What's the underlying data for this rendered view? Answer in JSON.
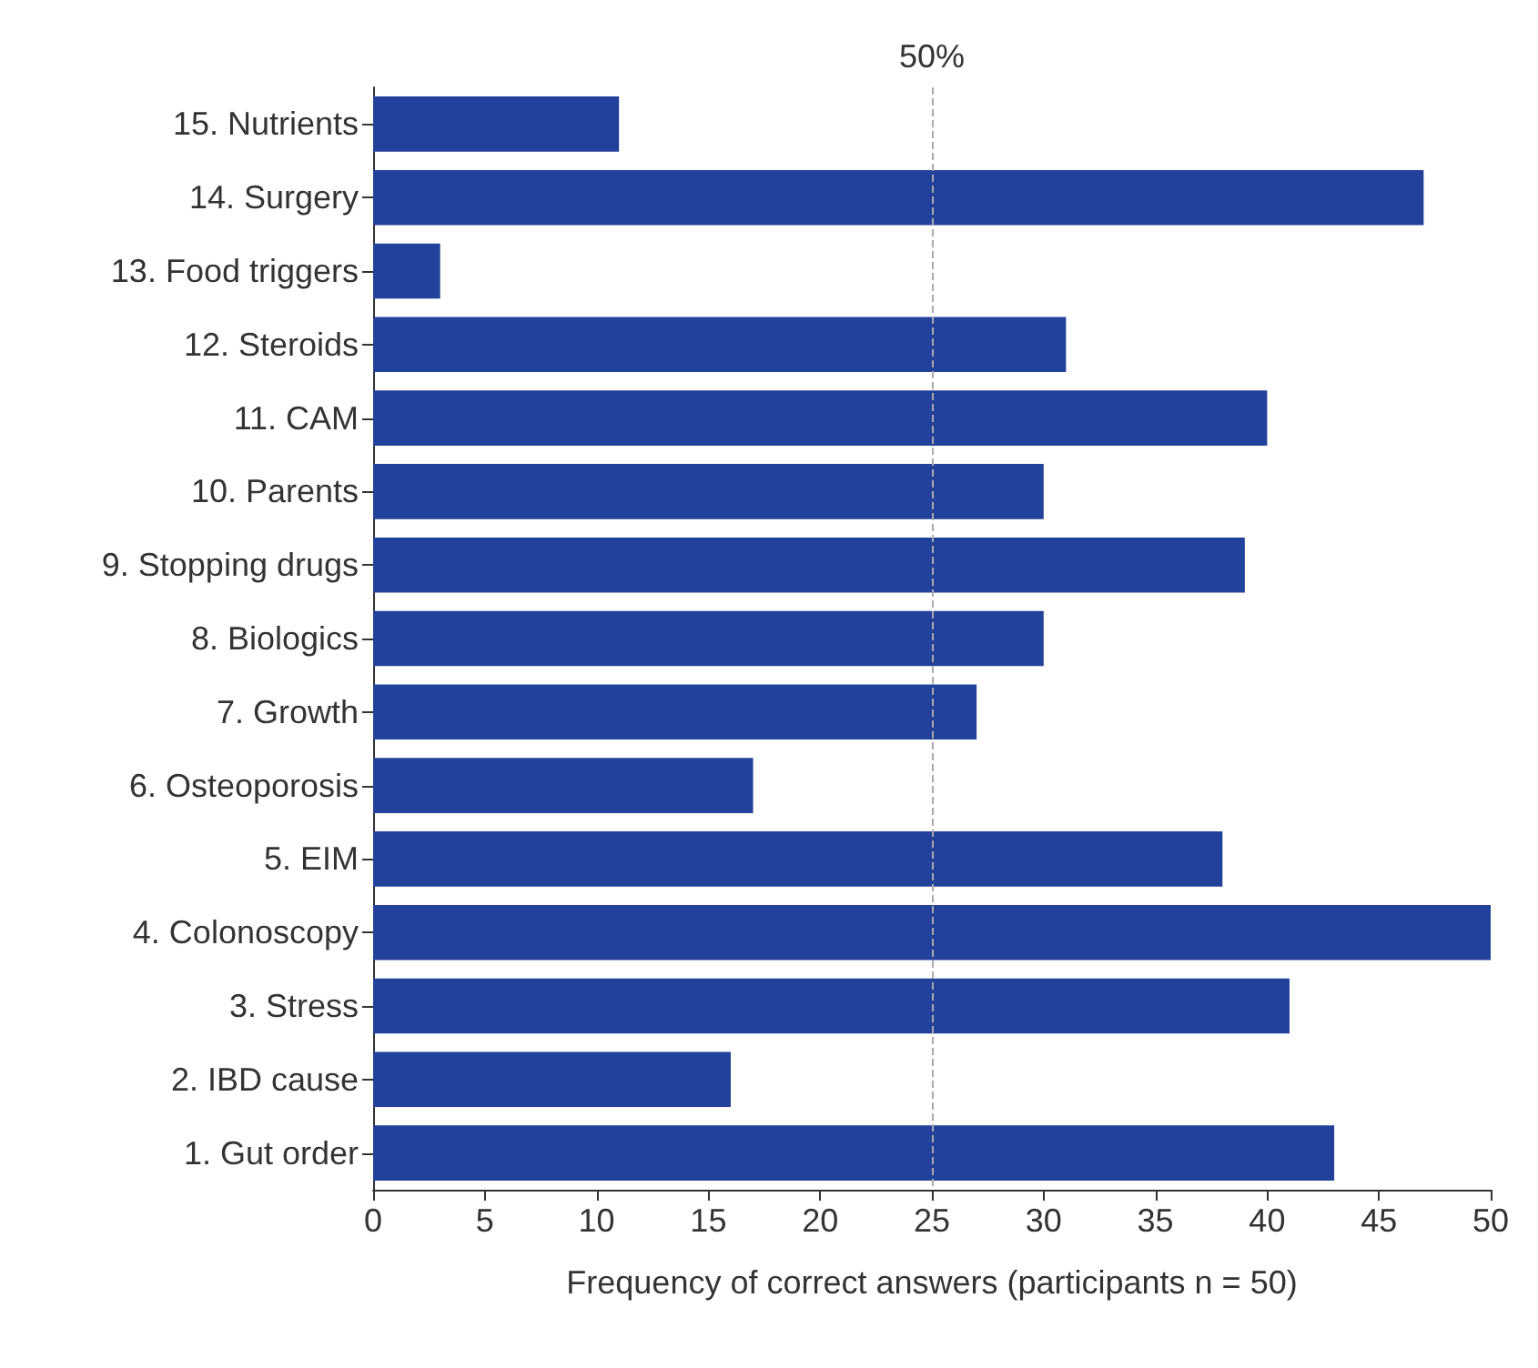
{
  "chart_data": {
    "type": "bar",
    "orientation": "horizontal",
    "xlabel": "Frequency of correct answers (participants n = 50)",
    "categories": [
      "15. Nutrients",
      "14. Surgery",
      "13. Food triggers",
      "12. Steroids",
      "11. CAM",
      "10. Parents",
      "9. Stopping drugs",
      "8. Biologics",
      "7. Growth",
      "6. Osteoporosis",
      "5. EIM",
      "4. Colonoscopy",
      "3. Stress",
      "2. IBD cause",
      "1. Gut order"
    ],
    "values": [
      11,
      47,
      3,
      31,
      40,
      30,
      39,
      30,
      27,
      17,
      38,
      50,
      41,
      16,
      43
    ],
    "color": "#22419a",
    "xlim": [
      0,
      50
    ],
    "xticks": [
      0,
      5,
      10,
      15,
      20,
      25,
      30,
      35,
      40,
      45,
      50
    ],
    "ref_lines": [
      {
        "axis": "x",
        "value": 25,
        "color": "#aaaaaa",
        "line_style": "dashed"
      }
    ],
    "annotations": [
      "50%"
    ],
    "grid": false
  }
}
